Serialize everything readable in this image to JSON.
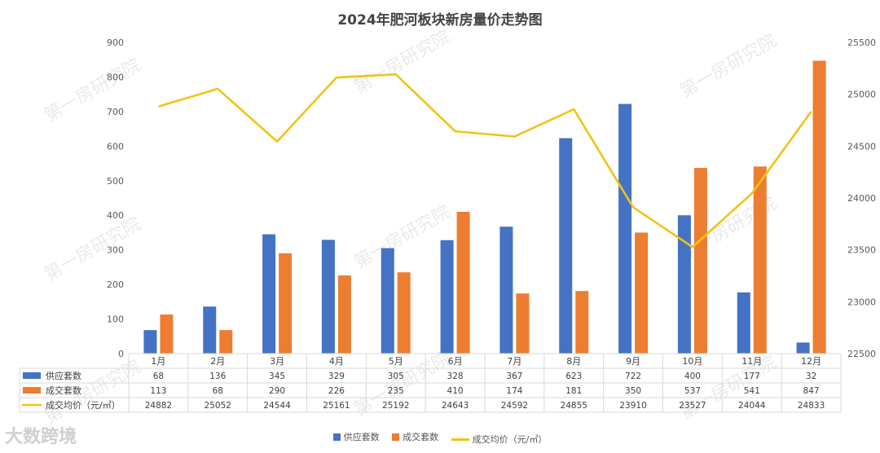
{
  "chart_data": {
    "type": "bar",
    "title": "2024年肥河板块新房量价走势图",
    "categories": [
      "1月",
      "2月",
      "3月",
      "4月",
      "5月",
      "6月",
      "7月",
      "8月",
      "9月",
      "10月",
      "11月",
      "12月"
    ],
    "series": [
      {
        "name": "供应套数",
        "type": "bar",
        "axis": "left",
        "color": "#4472C4",
        "values": [
          68,
          136,
          345,
          329,
          305,
          328,
          367,
          623,
          722,
          400,
          177,
          32
        ]
      },
      {
        "name": "成交套数",
        "type": "bar",
        "axis": "left",
        "color": "#ED7D31",
        "values": [
          113,
          68,
          290,
          226,
          235,
          410,
          174,
          181,
          350,
          537,
          541,
          847
        ]
      },
      {
        "name": "成交均价（元/㎡）",
        "type": "line",
        "axis": "right",
        "color": "#F2C314",
        "values": [
          24882,
          25052,
          24544,
          25161,
          25192,
          24643,
          24592,
          24855,
          23910,
          23527,
          24044,
          24833
        ]
      }
    ],
    "y_left": {
      "min": 0,
      "max": 900,
      "ticks": [
        0,
        100,
        200,
        300,
        400,
        500,
        600,
        700,
        800,
        900
      ]
    },
    "y_right": {
      "min": 22500,
      "max": 25500,
      "ticks": [
        22500,
        23000,
        23500,
        24000,
        24500,
        25000,
        25500
      ]
    },
    "table": {
      "rows": [
        {
          "label": "供应套数",
          "values": [
            "68",
            "136",
            "345",
            "329",
            "305",
            "328",
            "367",
            "623",
            "722",
            "400",
            "177",
            "32"
          ]
        },
        {
          "label": "成交套数",
          "values": [
            "113",
            "68",
            "290",
            "226",
            "235",
            "410",
            "174",
            "181",
            "350",
            "537",
            "541",
            "847"
          ]
        },
        {
          "label": "成交均价（元/㎡）",
          "values": [
            "24882",
            "25052",
            "24544",
            "25161",
            "25192",
            "24643",
            "24592",
            "24855",
            "23910",
            "23527",
            "24044",
            "24833"
          ]
        }
      ]
    },
    "legend": [
      "供应套数",
      "成交套数",
      "成交均价（元/㎡）"
    ],
    "grid": false
  },
  "watermark": "第一房研究院",
  "logo_text": "大数跨境"
}
